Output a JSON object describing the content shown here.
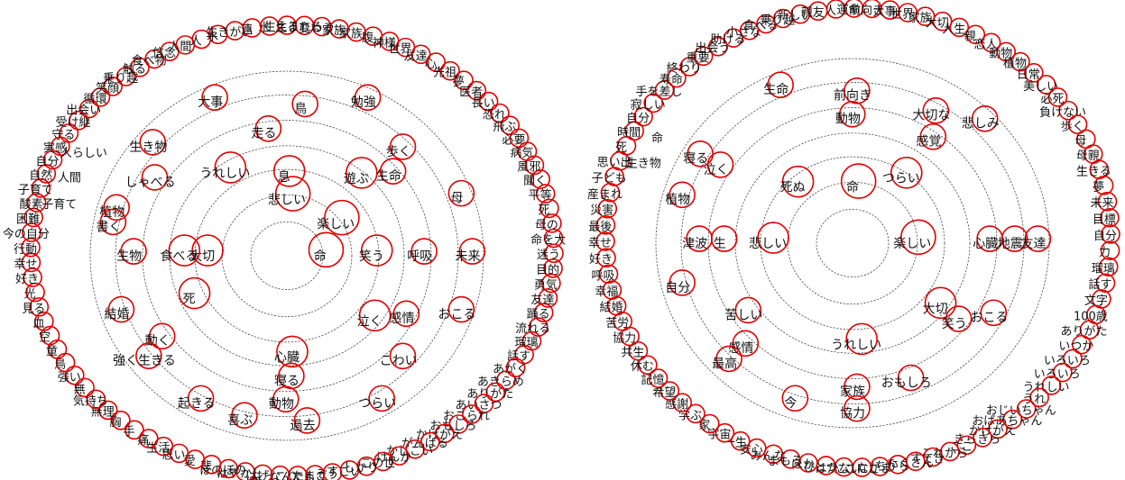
{
  "diagrams": [
    {
      "inner_nodes": [
        {
          "label": "命",
          "ring": 0,
          "ang": 0
        },
        {
          "label": "悲しい",
          "ring": 1,
          "ang": 90
        },
        {
          "label": "楽しい",
          "ring": 1,
          "ang": 35
        },
        {
          "label": "笑う",
          "ring": 2,
          "ang": 0
        },
        {
          "label": "大切",
          "ring": 2,
          "ang": 180
        },
        {
          "label": "息",
          "ring": 2,
          "ang": 92
        },
        {
          "label": "遊ぶ",
          "ring": 3,
          "ang": 50
        },
        {
          "label": "うれしい",
          "ring": 3,
          "ang": 125
        },
        {
          "label": "食べる",
          "ring": 3,
          "ang": 180
        },
        {
          "label": "死",
          "ring": 3,
          "ang": 205
        },
        {
          "label": "心臓",
          "ring": 3,
          "ang": 270
        },
        {
          "label": "泣く",
          "ring": 3,
          "ang": 320
        },
        {
          "label": "呼吸",
          "ring": 4,
          "ang": 0
        },
        {
          "label": "走る",
          "ring": 4,
          "ang": 100
        },
        {
          "label": "生命",
          "ring": 4,
          "ang": 40
        },
        {
          "label": "寝る",
          "ring": 4,
          "ang": 270
        },
        {
          "label": "感情",
          "ring": 4,
          "ang": 330
        },
        {
          "label": "鳥",
          "ring": 5,
          "ang": 85
        },
        {
          "label": "生物",
          "ring": 5,
          "ang": 180
        },
        {
          "label": "しゃべる",
          "ring": 5,
          "ang": 150
        },
        {
          "label": "動く",
          "ring": 5,
          "ang": 215
        },
        {
          "label": "動物",
          "ring": 5,
          "ang": 268
        },
        {
          "label": "こわい",
          "ring": 5,
          "ang": 315
        },
        {
          "label": "歩く",
          "ring": 5,
          "ang": 45
        },
        {
          "label": "未来",
          "ring": 6,
          "ang": 0
        },
        {
          "label": "母",
          "ring": 6,
          "ang": 20
        },
        {
          "label": "勉強",
          "ring": 6,
          "ang": 65
        },
        {
          "label": "大事",
          "ring": 6,
          "ang": 115
        },
        {
          "label": "生き物",
          "ring": 6,
          "ang": 140
        },
        {
          "label": "植物",
          "ring": 6,
          "ang": 165
        },
        {
          "label": "結婚",
          "ring": 6,
          "ang": 200
        },
        {
          "label": "強く生きる",
          "ring": 6,
          "ang": 218
        },
        {
          "label": "起きる",
          "ring": 6,
          "ang": 240
        },
        {
          "label": "喜ぶ",
          "ring": 6,
          "ang": 255
        },
        {
          "label": "過去",
          "ring": 6,
          "ang": 275
        },
        {
          "label": "つらい",
          "ring": 6,
          "ang": 300
        },
        {
          "label": "おこる",
          "ring": 6,
          "ang": 340
        },
        {
          "label": "書く",
          "ring": 6,
          "ang": 170
        }
      ],
      "outer_labels": [
        "水",
        "生える",
        "生まれる",
        "変わる",
        "家族",
        "家族",
        "腹",
        "神様",
        "世界",
        "友達",
        "心",
        "先祖",
        "夢",
        "医者",
        "長い",
        "恐れ",
        "飛ぶ",
        "必要",
        "病気",
        "風邪",
        "聞く",
        "平等",
        "死",
        "母の",
        "命を大",
        "迷う",
        "目的",
        "勇気",
        "友達",
        "踊る",
        "流れる",
        "瑠璃",
        "話す",
        "あがく",
        "あきらめ",
        "ありがた",
        "あいさつ",
        "おこられ",
        "おもしろ",
        "かけがえ",
        "がんばる",
        "かしこい",
        "けんか",
        "この世",
        "しかり",
        "すごい",
        "そう",
        "たまご",
        "なんでも",
        "にっこり",
        "はげ",
        "はずかし",
        "ほのぼの",
        "悲",
        "愛",
        "思い",
        "生活",
        "痛",
        "手",
        "胸",
        "無理",
        "気持ち",
        "無",
        "強い",
        "鳥",
        "童",
        "空",
        "血",
        "見る",
        "光",
        "好き",
        "幸せ",
        "行動",
        "今の自分",
        "困難",
        "酸素",
        "子育て",
        "自然",
        "自分",
        "実感",
        "守る",
        "受け継",
        "出会い",
        "循環",
        "笑顔",
        "乗り越",
        "触る",
        "食べ物",
        "信念",
        "人間",
        "人",
        "水",
        "生きがい",
        "連"
      ],
      "extra_labels": [
        "人らしい",
        "人間",
        "子育て"
      ]
    },
    {
      "inner_nodes": [
        {
          "label": "楽しい",
          "ring": 1,
          "ang": 0
        },
        {
          "label": "命",
          "ring": 1,
          "ang": 90
        },
        {
          "label": "悲しい",
          "ring": 2,
          "ang": 180
        },
        {
          "label": "つらい",
          "ring": 2,
          "ang": 55
        },
        {
          "label": "死ぬ",
          "ring": 2,
          "ang": 135
        },
        {
          "label": "大切",
          "ring": 3,
          "ang": 320
        },
        {
          "label": "うれしい",
          "ring": 3,
          "ang": 272
        },
        {
          "label": "動物",
          "ring": 4,
          "ang": 92
        },
        {
          "label": "苦しい",
          "ring": 4,
          "ang": 215
        },
        {
          "label": "生",
          "ring": 4,
          "ang": 180
        },
        {
          "label": "心臓",
          "ring": 4,
          "ang": 0
        },
        {
          "label": "感覚",
          "ring": 4,
          "ang": 55
        },
        {
          "label": "笑う",
          "ring": 4,
          "ang": 320
        },
        {
          "label": "前向き",
          "ring": 5,
          "ang": 90
        },
        {
          "label": "大切な",
          "ring": 5,
          "ang": 60
        },
        {
          "label": "泣く",
          "ring": 5,
          "ang": 150
        },
        {
          "label": "津波",
          "ring": 5,
          "ang": 180
        },
        {
          "label": "感情",
          "ring": 5,
          "ang": 225
        },
        {
          "label": "家族",
          "ring": 5,
          "ang": 270
        },
        {
          "label": "おこる",
          "ring": 5,
          "ang": 330
        },
        {
          "label": "おもしろ",
          "ring": 5,
          "ang": 290
        },
        {
          "label": "地震",
          "ring": 5,
          "ang": 0
        },
        {
          "label": "生命",
          "ring": 6,
          "ang": 115
        },
        {
          "label": "寝る",
          "ring": 6,
          "ang": 150
        },
        {
          "label": "植物",
          "ring": 6,
          "ang": 165
        },
        {
          "label": "自分",
          "ring": 6,
          "ang": 195
        },
        {
          "label": "最高",
          "ring": 6,
          "ang": 225
        },
        {
          "label": "今",
          "ring": 6,
          "ang": 250
        },
        {
          "label": "協力",
          "ring": 6,
          "ang": 270
        },
        {
          "label": "悲しみ",
          "ring": 6,
          "ang": 45
        },
        {
          "label": "友達",
          "ring": 6,
          "ang": 0
        }
      ],
      "outer_labels": [
        "人",
        "運命",
        "前向き",
        "大事",
        "世界",
        "家族",
        "大切",
        "人生",
        "親",
        "恋人",
        "動物",
        "植物",
        "日常",
        "美しい",
        "必死",
        "負けない",
        "歩く",
        "母",
        "母親",
        "生きる",
        "夢",
        "未来",
        "目標",
        "自分",
        "力",
        "瑠璃",
        "話す",
        "文字",
        "100歳",
        "ありがた",
        "いつか",
        "いろいろ",
        "いろいろ",
        "うれしい",
        "うれ",
        "おじいちゃん",
        "おばあちゃん",
        "かけがえ",
        "きらきら",
        "ここ",
        "これから",
        "すてき",
        "たくさん",
        "ちから",
        "なかま",
        "にこにこ",
        "はかない",
        "ひとつ",
        "ほか",
        "まもる",
        "みんな",
        "安心",
        "一生",
        "宇宙",
        "家",
        "学ぶ",
        "感謝",
        "希望",
        "記憶",
        "休む",
        "共生",
        "協力",
        "苦労",
        "結婚",
        "幸福",
        "呼吸",
        "好き",
        "幸せ",
        "最後",
        "災害",
        "産まれ",
        "子ども",
        "思い出",
        "死",
        "時間",
        "自分",
        "寂しい",
        "手を差し",
        "寿命",
        "終わり",
        "重要",
        "出会う",
        "助ける",
        "小さな",
        "食べる",
        "乗り越",
        "新しい",
        "親友"
      ],
      "extra_labels": [
        "命",
        "生き物"
      ]
    }
  ]
}
